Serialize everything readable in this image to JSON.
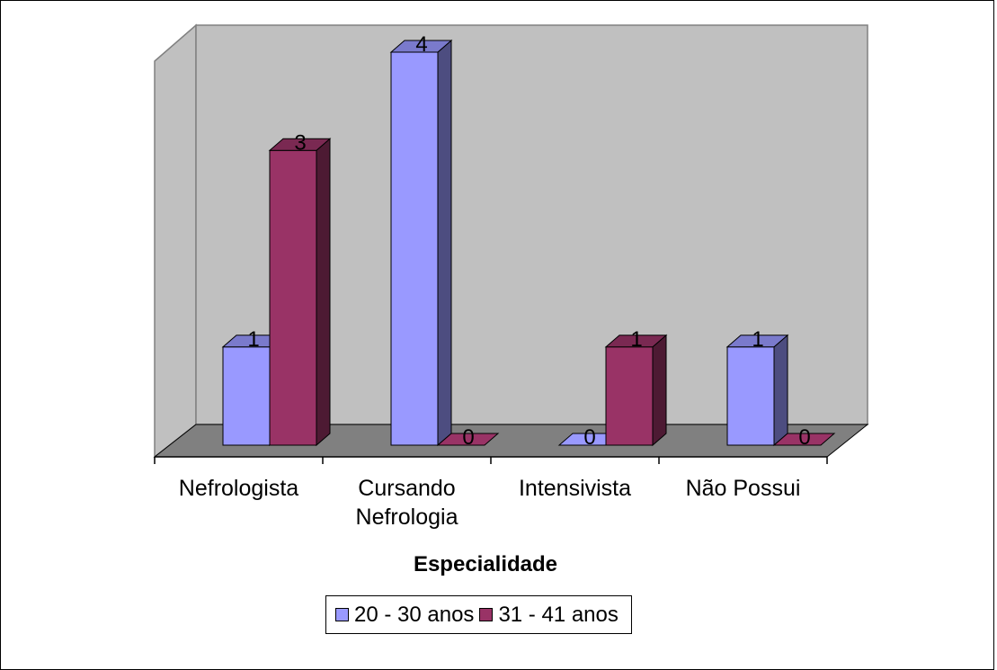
{
  "chart_data": {
    "type": "bar",
    "three_d": true,
    "categories": [
      "Nefrologista",
      "Cursando\nNefrologia",
      "Intensivista",
      "Não Possui"
    ],
    "series": [
      {
        "name": "20 - 30 anos",
        "values": [
          1,
          4,
          0,
          1
        ],
        "color": "#9999ff"
      },
      {
        "name": "31 - 41 anos",
        "values": [
          3,
          0,
          1,
          0
        ],
        "color": "#993366"
      }
    ],
    "xlabel": "Especialidade",
    "ylabel": "",
    "ylim": [
      0,
      4
    ],
    "data_labels": true,
    "grid": false,
    "legend": "bottom",
    "wall_color": "#c0c0c0",
    "floor_color": "#808080"
  }
}
